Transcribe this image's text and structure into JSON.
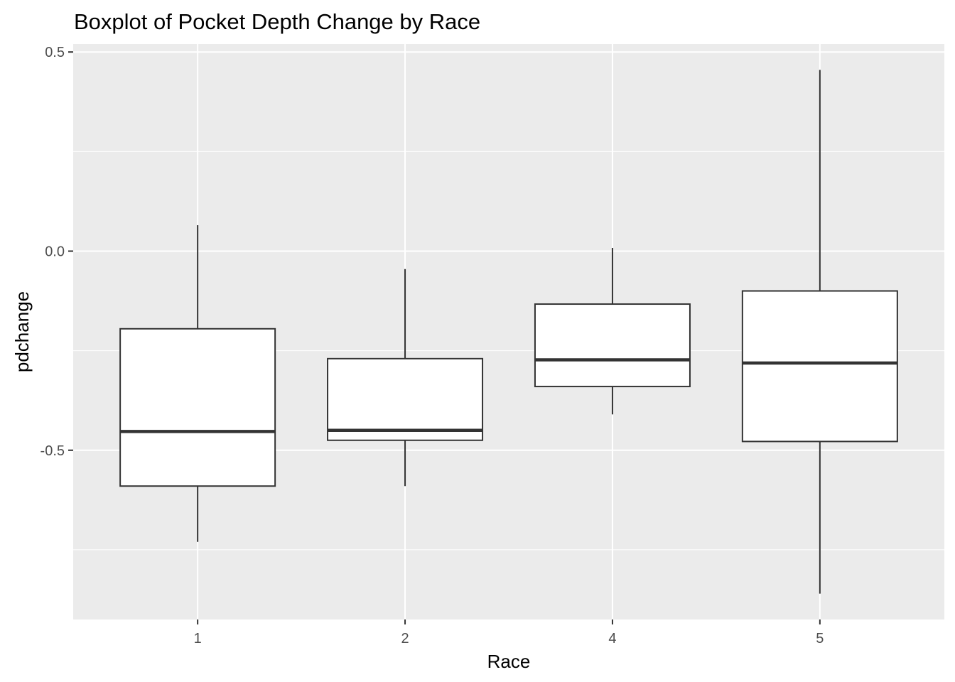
{
  "chart_data": {
    "type": "boxplot",
    "title": "Boxplot of Pocket Depth Change by Race",
    "xlabel": "Race",
    "ylabel": "pdchange",
    "categories": [
      "1",
      "2",
      "4",
      "5"
    ],
    "boxes": [
      {
        "category": "1",
        "whisker_low": -0.73,
        "q1": -0.59,
        "median": -0.453,
        "q3": -0.195,
        "whisker_high": 0.065
      },
      {
        "category": "2",
        "whisker_low": -0.59,
        "q1": -0.475,
        "median": -0.45,
        "q3": -0.27,
        "whisker_high": -0.045
      },
      {
        "category": "4",
        "whisker_low": -0.41,
        "q1": -0.34,
        "median": -0.273,
        "q3": -0.133,
        "whisker_high": 0.008
      },
      {
        "category": "5",
        "whisker_low": -0.86,
        "q1": -0.478,
        "median": -0.281,
        "q3": -0.1,
        "whisker_high": 0.455
      }
    ],
    "ylim": [
      -0.925,
      0.52
    ],
    "yticks": [
      0.5,
      0.0,
      -0.5
    ],
    "ytick_labels": [
      "0.5",
      "0.0",
      "-0.5"
    ],
    "yminor": [
      0.25,
      -0.25,
      -0.75
    ],
    "grid": true,
    "legend": "none",
    "colors": {
      "panel": "#ebebeb",
      "grid": "#ffffff",
      "box_fill": "#ffffff",
      "box_line": "#333333",
      "tick_text": "#4d4d4d",
      "tick_mark": "#333333"
    }
  }
}
